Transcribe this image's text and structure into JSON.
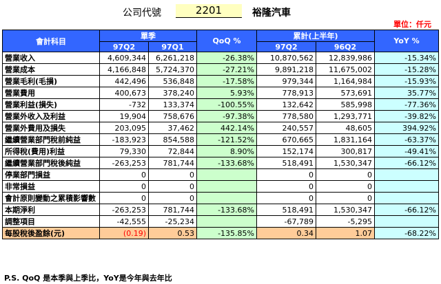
{
  "header": {
    "company_code_label": "公司代號",
    "company_code": "2201",
    "company_name": "裕隆汽車"
  },
  "unit": "單位：仟元",
  "table": {
    "col_item": "會計科目",
    "group_quarter": "單季",
    "group_cumulative": "累計(上半年)",
    "col_qoq": "QoQ %",
    "col_yoy": "YoY %",
    "sub_97q2_a": "97Q2",
    "sub_97q1": "97Q1",
    "sub_97q2_b": "97Q2",
    "sub_96q2": "96Q2",
    "rows": [
      {
        "name": "營業收入",
        "q1": "4,609,344",
        "q2": "6,261,218",
        "qoq": "-26.38%",
        "c1": "10,870,562",
        "c2": "12,839,986",
        "yoy": "-15.34%"
      },
      {
        "name": "營業成本",
        "q1": "4,166,848",
        "q2": "5,724,370",
        "qoq": "-27.21%",
        "c1": "9,891,218",
        "c2": "11,675,002",
        "yoy": "-15.28%"
      },
      {
        "name": "營業毛利(毛損)",
        "q1": "442,496",
        "q2": "536,848",
        "qoq": "-17.58%",
        "c1": "979,344",
        "c2": "1,164,984",
        "yoy": "-15.93%"
      },
      {
        "name": "營業費用",
        "q1": "400,673",
        "q2": "378,240",
        "qoq": "5.93%",
        "c1": "778,913",
        "c2": "573,691",
        "yoy": "35.77%"
      },
      {
        "name": "營業利益(損失)",
        "q1": "-732",
        "q2": "133,374",
        "qoq": "-100.55%",
        "c1": "132,642",
        "c2": "585,998",
        "yoy": "-77.36%"
      },
      {
        "name": "營業外收入及利益",
        "q1": "19,904",
        "q2": "758,676",
        "qoq": "-97.38%",
        "c1": "778,580",
        "c2": "1,293,771",
        "yoy": "-39.82%"
      },
      {
        "name": "營業外費用及損失",
        "q1": "203,095",
        "q2": "37,462",
        "qoq": "442.14%",
        "c1": "240,557",
        "c2": "48,605",
        "yoy": "394.92%"
      },
      {
        "name": "繼續營業部門稅前純益",
        "q1": "-183,923",
        "q2": "854,588",
        "qoq": "-121.52%",
        "c1": "670,665",
        "c2": "1,831,164",
        "yoy": "-63.37%"
      },
      {
        "name": "所得稅(費用)利益",
        "q1": "79,330",
        "q2": "72,844",
        "qoq": "8.90%",
        "c1": "152,174",
        "c2": "300,817",
        "yoy": "-49.41%"
      },
      {
        "name": "繼續營業部門稅後純益",
        "q1": "-263,253",
        "q2": "781,744",
        "qoq": "-133.68%",
        "c1": "518,491",
        "c2": "1,530,347",
        "yoy": "-66.12%"
      },
      {
        "name": "停業部門損益",
        "q1": "0",
        "q2": "0",
        "qoq": "",
        "c1": "0",
        "c2": "0",
        "yoy": ""
      },
      {
        "name": "非常損益",
        "q1": "0",
        "q2": "0",
        "qoq": "",
        "c1": "0",
        "c2": "0",
        "yoy": ""
      },
      {
        "name": "會計原則變動之累積影響數",
        "q1": "0",
        "q2": "0",
        "qoq": "",
        "c1": "0",
        "c2": "0",
        "yoy": ""
      },
      {
        "name": "本期淨利",
        "q1": "-263,253",
        "q2": "781,744",
        "qoq": "-133.68%",
        "c1": "518,491",
        "c2": "1,530,347",
        "yoy": "-66.12%"
      },
      {
        "name": "調整項目",
        "q1": "-42,555",
        "q2": "-25,234",
        "qoq": "",
        "c1": "-67,789",
        "c2": "-5,295",
        "yoy": ""
      },
      {
        "name": "每股稅後盈餘(元)",
        "q1": "(0.19)",
        "q2": "0.53",
        "qoq": "-135.85%",
        "c1": "0.34",
        "c2": "1.07",
        "yoy": "-68.22%"
      }
    ]
  },
  "note": "P.S. QoQ 是本季與上季比，YoY是今年與去年比",
  "colors": {
    "header_blue": "#3366ff",
    "qoq_green": "#ccffcc",
    "yoy_cyan": "#ccffff",
    "eps_orange": "#ffcc99",
    "red": "#ff0000",
    "code_yellow": "#ffffc0"
  }
}
